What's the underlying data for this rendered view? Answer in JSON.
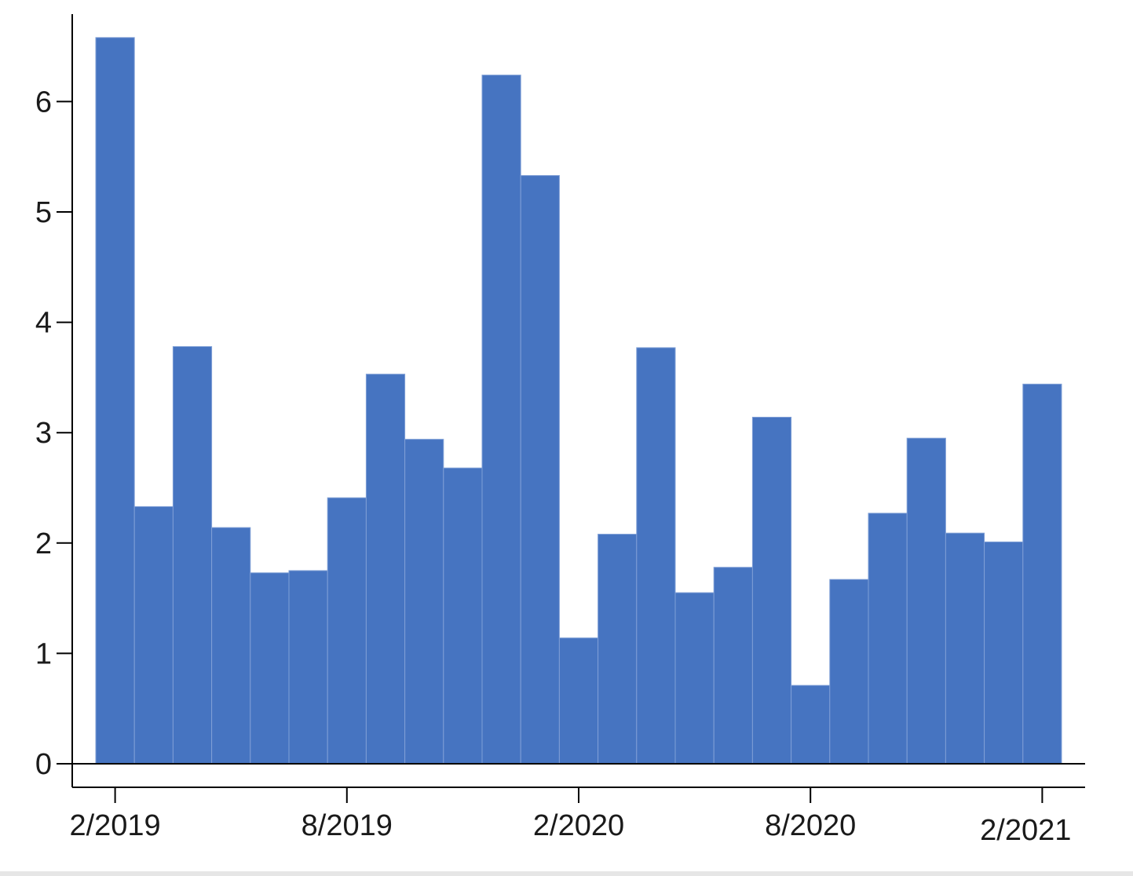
{
  "chart_data": {
    "type": "bar",
    "title": "",
    "xlabel": "",
    "ylabel": "",
    "bar_color": "#4674c1",
    "bar_edge_color": "#7f9fd6",
    "grid": false,
    "legend": "none",
    "ylim": [
      0,
      6.72
    ],
    "y_ticks": [
      0,
      1,
      2,
      3,
      4,
      5,
      6
    ],
    "y_tick_labels": [
      "0",
      "1",
      "2",
      "3",
      "4",
      "5",
      "6"
    ],
    "x_ticks": [
      "2019-02",
      "2019-08",
      "2020-02",
      "2020-08",
      "2021-02"
    ],
    "x_tick_labels": [
      "2/2019",
      "8/2019",
      "2/2020",
      "8/2020",
      "2/2021"
    ],
    "categories": [
      "2019-02",
      "2019-03",
      "2019-04",
      "2019-05",
      "2019-06",
      "2019-07",
      "2019-08",
      "2019-09",
      "2019-10",
      "2019-11",
      "2019-12",
      "2020-01",
      "2020-02",
      "2020-03",
      "2020-04",
      "2020-05",
      "2020-06",
      "2020-07",
      "2020-08",
      "2020-09",
      "2020-10",
      "2020-11",
      "2020-12",
      "2021-01",
      "2021-02"
    ],
    "values": [
      6.58,
      2.33,
      3.78,
      2.14,
      1.73,
      1.75,
      2.41,
      3.53,
      2.94,
      2.68,
      6.24,
      5.33,
      1.14,
      2.08,
      3.77,
      1.55,
      1.78,
      3.14,
      0.71,
      1.67,
      2.27,
      2.95,
      2.09,
      2.01,
      3.44
    ]
  }
}
